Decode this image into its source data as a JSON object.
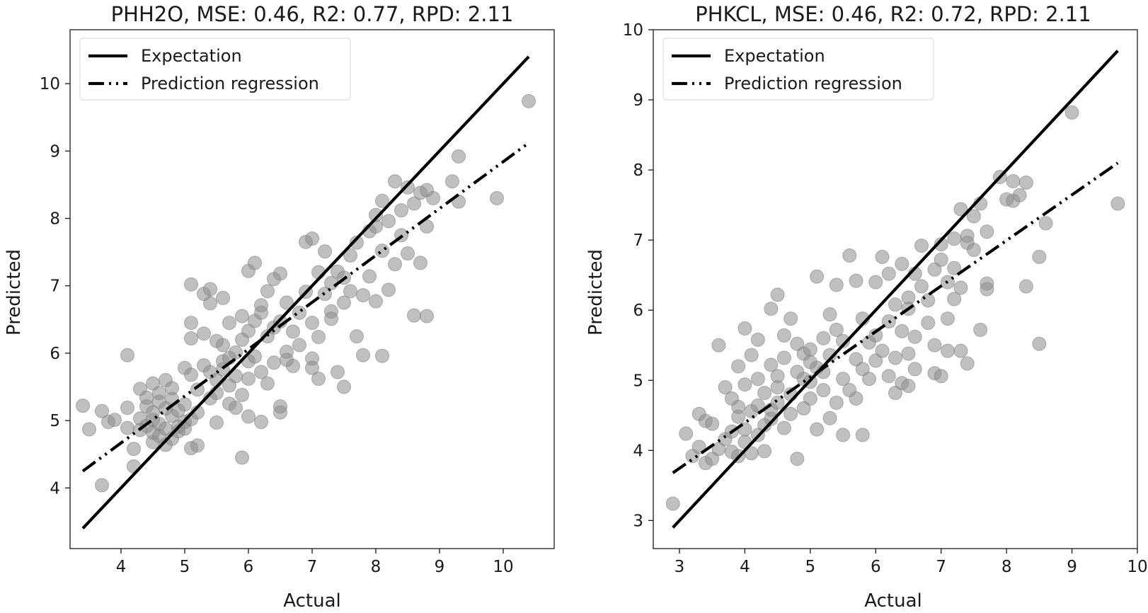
{
  "chart_data": [
    {
      "type": "scatter",
      "title": "PHH2O, MSE: 0.46, R2: 0.77, RPD: 2.11",
      "xlabel": "Actual",
      "ylabel": "Predicted",
      "xlim": [
        3.2,
        10.8
      ],
      "ylim": [
        3.1,
        10.8
      ],
      "xticks": [
        4,
        5,
        6,
        7,
        8,
        9,
        10
      ],
      "yticks": [
        4,
        5,
        6,
        7,
        8,
        9,
        10
      ],
      "grid": false,
      "legend_position": "top-left",
      "legend": [
        "Expectation",
        "Prediction regression"
      ],
      "expectation_line": {
        "x": [
          3.4,
          10.4
        ],
        "y": [
          3.4,
          10.4
        ]
      },
      "regression_line": {
        "x": [
          3.4,
          10.4
        ],
        "y": [
          4.25,
          9.12
        ]
      },
      "points": [
        [
          3.4,
          5.22
        ],
        [
          3.5,
          4.87
        ],
        [
          3.7,
          5.14
        ],
        [
          3.7,
          4.04
        ],
        [
          3.8,
          4.98
        ],
        [
          3.9,
          5.01
        ],
        [
          4.1,
          5.97
        ],
        [
          4.1,
          5.19
        ],
        [
          4.1,
          4.89
        ],
        [
          4.2,
          4.32
        ],
        [
          4.2,
          4.58
        ],
        [
          4.3,
          5.47
        ],
        [
          4.3,
          5.03
        ],
        [
          4.3,
          4.86
        ],
        [
          4.4,
          5.21
        ],
        [
          4.4,
          4.92
        ],
        [
          4.4,
          5.34
        ],
        [
          4.5,
          5.12
        ],
        [
          4.5,
          4.68
        ],
        [
          4.5,
          4.82
        ],
        [
          4.5,
          5.55
        ],
        [
          4.5,
          5.01
        ],
        [
          4.6,
          5.28
        ],
        [
          4.6,
          4.77
        ],
        [
          4.6,
          5.41
        ],
        [
          4.6,
          4.95
        ],
        [
          4.7,
          5.6
        ],
        [
          4.7,
          5.18
        ],
        [
          4.7,
          4.88
        ],
        [
          4.7,
          4.64
        ],
        [
          4.8,
          5.07
        ],
        [
          4.8,
          5.32
        ],
        [
          4.8,
          4.73
        ],
        [
          4.8,
          5.48
        ],
        [
          4.9,
          4.91
        ],
        [
          4.9,
          5.15
        ],
        [
          4.9,
          4.84
        ],
        [
          5.0,
          5.24
        ],
        [
          5.0,
          4.98
        ],
        [
          5.0,
          5.78
        ],
        [
          5.0,
          4.88
        ],
        [
          5.1,
          5.02
        ],
        [
          5.1,
          5.68
        ],
        [
          5.1,
          4.59
        ],
        [
          5.1,
          6.22
        ],
        [
          5.1,
          6.45
        ],
        [
          5.1,
          7.02
        ],
        [
          5.2,
          4.63
        ],
        [
          5.2,
          5.46
        ],
        [
          5.2,
          5.12
        ],
        [
          5.3,
          5.82
        ],
        [
          5.3,
          6.88
        ],
        [
          5.3,
          6.29
        ],
        [
          5.4,
          5.33
        ],
        [
          5.4,
          5.72
        ],
        [
          5.4,
          6.74
        ],
        [
          5.4,
          6.95
        ],
        [
          5.5,
          5.6
        ],
        [
          5.5,
          6.18
        ],
        [
          5.5,
          5.41
        ],
        [
          5.5,
          4.97
        ],
        [
          5.6,
          6.82
        ],
        [
          5.6,
          5.76
        ],
        [
          5.6,
          5.88
        ],
        [
          5.6,
          6.12
        ],
        [
          5.7,
          5.25
        ],
        [
          5.7,
          5.52
        ],
        [
          5.7,
          6.45
        ],
        [
          5.7,
          5.93
        ],
        [
          5.8,
          6.01
        ],
        [
          5.8,
          5.66
        ],
        [
          5.8,
          5.19
        ],
        [
          5.9,
          6.55
        ],
        [
          5.9,
          6.2
        ],
        [
          5.9,
          5.38
        ],
        [
          5.9,
          4.45
        ],
        [
          6.0,
          5.06
        ],
        [
          6.0,
          5.88
        ],
        [
          6.0,
          6.33
        ],
        [
          6.0,
          7.22
        ],
        [
          6.0,
          5.62
        ],
        [
          6.1,
          6.48
        ],
        [
          6.1,
          5.95
        ],
        [
          6.1,
          7.34
        ],
        [
          6.2,
          6.6
        ],
        [
          6.2,
          6.71
        ],
        [
          6.2,
          4.98
        ],
        [
          6.2,
          5.72
        ],
        [
          6.3,
          6.25
        ],
        [
          6.3,
          6.92
        ],
        [
          6.3,
          5.55
        ],
        [
          6.4,
          7.1
        ],
        [
          6.4,
          6.38
        ],
        [
          6.4,
          5.86
        ],
        [
          6.5,
          5.21
        ],
        [
          6.5,
          6.47
        ],
        [
          6.5,
          7.18
        ],
        [
          6.5,
          5.12
        ],
        [
          6.6,
          6.02
        ],
        [
          6.6,
          6.75
        ],
        [
          6.6,
          5.9
        ],
        [
          6.7,
          6.32
        ],
        [
          6.7,
          5.81
        ],
        [
          6.8,
          6.6
        ],
        [
          6.8,
          6.12
        ],
        [
          6.9,
          6.91
        ],
        [
          6.9,
          7.65
        ],
        [
          7.0,
          5.92
        ],
        [
          7.0,
          6.45
        ],
        [
          7.0,
          7.7
        ],
        [
          7.0,
          5.78
        ],
        [
          7.1,
          6.24
        ],
        [
          7.1,
          7.2
        ],
        [
          7.1,
          5.62
        ],
        [
          7.2,
          6.88
        ],
        [
          7.2,
          7.51
        ],
        [
          7.3,
          6.62
        ],
        [
          7.3,
          7.04
        ],
        [
          7.3,
          6.51
        ],
        [
          7.4,
          7.21
        ],
        [
          7.4,
          5.72
        ],
        [
          7.5,
          6.75
        ],
        [
          7.5,
          7.12
        ],
        [
          7.5,
          5.5
        ],
        [
          7.6,
          7.45
        ],
        [
          7.6,
          6.92
        ],
        [
          7.7,
          6.25
        ],
        [
          7.7,
          7.64
        ],
        [
          7.8,
          6.86
        ],
        [
          7.8,
          5.97
        ],
        [
          7.9,
          7.14
        ],
        [
          7.9,
          7.81
        ],
        [
          8.0,
          6.77
        ],
        [
          8.0,
          7.88
        ],
        [
          8.0,
          8.05
        ],
        [
          8.1,
          5.96
        ],
        [
          8.1,
          7.52
        ],
        [
          8.1,
          8.26
        ],
        [
          8.2,
          6.94
        ],
        [
          8.2,
          7.96
        ],
        [
          8.3,
          8.55
        ],
        [
          8.3,
          7.32
        ],
        [
          8.4,
          8.12
        ],
        [
          8.4,
          7.75
        ],
        [
          8.5,
          7.48
        ],
        [
          8.5,
          8.46
        ],
        [
          8.6,
          6.56
        ],
        [
          8.6,
          8.22
        ],
        [
          8.7,
          7.34
        ],
        [
          8.7,
          8.38
        ],
        [
          8.8,
          6.55
        ],
        [
          8.8,
          7.88
        ],
        [
          8.8,
          8.42
        ],
        [
          8.9,
          8.3
        ],
        [
          9.2,
          8.55
        ],
        [
          9.3,
          8.25
        ],
        [
          9.3,
          8.92
        ],
        [
          9.9,
          8.3
        ],
        [
          10.4,
          9.74
        ]
      ]
    },
    {
      "type": "scatter",
      "title": "PHKCL, MSE: 0.46, R2: 0.72, RPD: 2.11",
      "xlabel": "Actual",
      "ylabel": "Predicted",
      "xlim": [
        2.6,
        10.0
      ],
      "ylim": [
        2.6,
        10.0
      ],
      "xticks": [
        3,
        4,
        5,
        6,
        7,
        8,
        9,
        10
      ],
      "yticks": [
        3,
        4,
        5,
        6,
        7,
        8,
        9,
        10
      ],
      "grid": false,
      "legend_position": "top-left",
      "legend": [
        "Expectation",
        "Prediction regression"
      ],
      "expectation_line": {
        "x": [
          2.9,
          9.7
        ],
        "y": [
          2.9,
          9.7
        ]
      },
      "regression_line": {
        "x": [
          2.9,
          9.7
        ],
        "y": [
          3.68,
          8.1
        ]
      },
      "points": [
        [
          2.9,
          3.24
        ],
        [
          3.1,
          4.24
        ],
        [
          3.2,
          3.92
        ],
        [
          3.3,
          4.52
        ],
        [
          3.3,
          4.05
        ],
        [
          3.4,
          3.82
        ],
        [
          3.4,
          4.42
        ],
        [
          3.5,
          3.88
        ],
        [
          3.5,
          4.38
        ],
        [
          3.6,
          5.5
        ],
        [
          3.6,
          4.02
        ],
        [
          3.7,
          4.9
        ],
        [
          3.7,
          4.16
        ],
        [
          3.8,
          4.74
        ],
        [
          3.8,
          3.98
        ],
        [
          3.8,
          4.27
        ],
        [
          3.9,
          4.62
        ],
        [
          3.9,
          5.2
        ],
        [
          3.9,
          3.92
        ],
        [
          3.9,
          4.48
        ],
        [
          4.0,
          4.12
        ],
        [
          4.0,
          5.74
        ],
        [
          4.0,
          4.94
        ],
        [
          4.0,
          4.3
        ],
        [
          4.1,
          5.36
        ],
        [
          4.1,
          4.56
        ],
        [
          4.1,
          3.96
        ],
        [
          4.2,
          5.58
        ],
        [
          4.2,
          4.64
        ],
        [
          4.2,
          4.22
        ],
        [
          4.2,
          5.02
        ],
        [
          4.3,
          4.36
        ],
        [
          4.3,
          4.82
        ],
        [
          4.3,
          3.99
        ],
        [
          4.4,
          5.22
        ],
        [
          4.4,
          4.58
        ],
        [
          4.4,
          4.45
        ],
        [
          4.4,
          6.02
        ],
        [
          4.5,
          4.68
        ],
        [
          4.5,
          5.06
        ],
        [
          4.5,
          4.9
        ],
        [
          4.5,
          6.22
        ],
        [
          4.6,
          5.64
        ],
        [
          4.6,
          4.32
        ],
        [
          4.6,
          5.32
        ],
        [
          4.7,
          4.8
        ],
        [
          4.7,
          5.88
        ],
        [
          4.7,
          4.52
        ],
        [
          4.8,
          5.12
        ],
        [
          4.8,
          3.88
        ],
        [
          4.8,
          5.52
        ],
        [
          4.9,
          5.38
        ],
        [
          4.9,
          4.6
        ],
        [
          4.9,
          5.02
        ],
        [
          5.0,
          4.74
        ],
        [
          5.0,
          5.26
        ],
        [
          5.0,
          4.98
        ],
        [
          5.0,
          5.44
        ],
        [
          5.1,
          4.3
        ],
        [
          5.1,
          5.18
        ],
        [
          5.1,
          6.48
        ],
        [
          5.2,
          4.86
        ],
        [
          5.2,
          5.6
        ],
        [
          5.2,
          5.12
        ],
        [
          5.3,
          5.94
        ],
        [
          5.3,
          4.46
        ],
        [
          5.3,
          5.36
        ],
        [
          5.4,
          5.72
        ],
        [
          5.4,
          4.68
        ],
        [
          5.4,
          6.36
        ],
        [
          5.5,
          5.02
        ],
        [
          5.5,
          4.22
        ],
        [
          5.5,
          5.56
        ],
        [
          5.6,
          6.78
        ],
        [
          5.6,
          4.86
        ],
        [
          5.7,
          5.3
        ],
        [
          5.7,
          6.42
        ],
        [
          5.7,
          4.74
        ],
        [
          5.8,
          5.16
        ],
        [
          5.8,
          5.88
        ],
        [
          5.8,
          4.22
        ],
        [
          5.9,
          5.54
        ],
        [
          5.9,
          5.02
        ],
        [
          6.0,
          5.64
        ],
        [
          6.0,
          6.4
        ],
        [
          6.0,
          5.28
        ],
        [
          6.1,
          6.76
        ],
        [
          6.1,
          5.42
        ],
        [
          6.2,
          5.84
        ],
        [
          6.2,
          6.52
        ],
        [
          6.2,
          5.06
        ],
        [
          6.3,
          6.08
        ],
        [
          6.3,
          4.82
        ],
        [
          6.3,
          5.32
        ],
        [
          6.4,
          5.7
        ],
        [
          6.4,
          6.66
        ],
        [
          6.4,
          4.96
        ],
        [
          6.5,
          6.18
        ],
        [
          6.5,
          5.38
        ],
        [
          6.5,
          6.02
        ],
        [
          6.5,
          4.92
        ],
        [
          6.6,
          6.52
        ],
        [
          6.6,
          5.62
        ],
        [
          6.6,
          5.16
        ],
        [
          6.7,
          6.92
        ],
        [
          6.7,
          6.34
        ],
        [
          6.8,
          5.82
        ],
        [
          6.8,
          6.14
        ],
        [
          6.9,
          6.58
        ],
        [
          6.9,
          5.1
        ],
        [
          6.9,
          5.5
        ],
        [
          7.0,
          6.72
        ],
        [
          7.0,
          5.06
        ],
        [
          7.0,
          6.94
        ],
        [
          7.1,
          5.88
        ],
        [
          7.1,
          6.4
        ],
        [
          7.1,
          5.42
        ],
        [
          7.2,
          6.6
        ],
        [
          7.2,
          7.02
        ],
        [
          7.2,
          6.16
        ],
        [
          7.3,
          7.44
        ],
        [
          7.3,
          5.42
        ],
        [
          7.3,
          6.32
        ],
        [
          7.4,
          7.06
        ],
        [
          7.4,
          6.96
        ],
        [
          7.4,
          5.24
        ],
        [
          7.5,
          6.86
        ],
        [
          7.5,
          7.34
        ],
        [
          7.6,
          5.72
        ],
        [
          7.6,
          7.52
        ],
        [
          7.7,
          6.38
        ],
        [
          7.7,
          7.12
        ],
        [
          7.7,
          6.3
        ],
        [
          7.9,
          7.9
        ],
        [
          8.0,
          7.58
        ],
        [
          8.1,
          7.84
        ],
        [
          8.1,
          7.56
        ],
        [
          8.2,
          7.64
        ],
        [
          8.3,
          7.82
        ],
        [
          8.3,
          6.34
        ],
        [
          8.5,
          6.76
        ],
        [
          8.5,
          5.52
        ],
        [
          8.6,
          7.24
        ],
        [
          9.0,
          8.82
        ],
        [
          9.7,
          7.52
        ]
      ]
    }
  ]
}
